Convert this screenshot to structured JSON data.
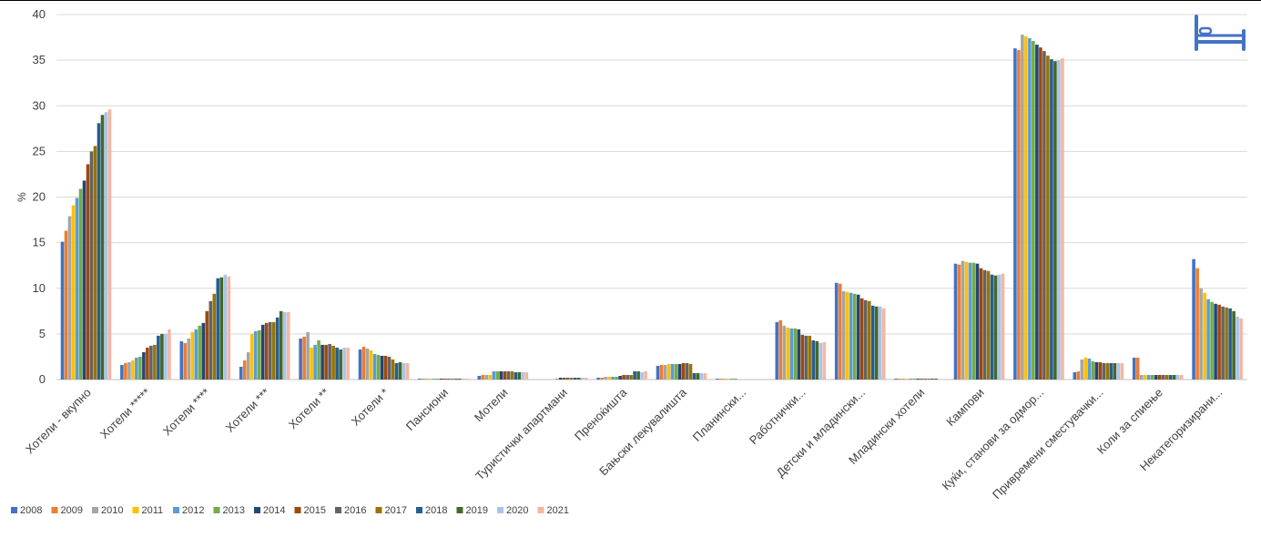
{
  "chart_data": {
    "type": "bar",
    "title": "",
    "xlabel": "",
    "ylabel": "%",
    "ylim": [
      0,
      40
    ],
    "yticks": [
      0,
      5,
      10,
      15,
      20,
      25,
      30,
      35,
      40
    ],
    "grid": true,
    "legend_position": "bottom-left",
    "categories": [
      "Хотели - вкупно",
      "Хотели *****",
      "Хотели ****",
      "Хотели ***",
      "Хотели **",
      "Хотели *",
      "Пансиони",
      "Мотели",
      "Туристички апартмани",
      "Преноќишта",
      "Бањски лекувалишта",
      "Планински...",
      "Работнички...",
      "Детски и младински...",
      "Младински хотели",
      "Кампови",
      "Куќи, станови за одмор...",
      "Привремени сместувачки...",
      "Коли за спиење",
      "Некатегоризирани..."
    ],
    "series": [
      {
        "name": "2008",
        "color": "#4472C4",
        "values": [
          15.1,
          1.6,
          4.2,
          1.4,
          4.5,
          3.3,
          0.1,
          0.4,
          0.0,
          0.2,
          1.5,
          0.1,
          6.3,
          10.6,
          0.1,
          12.7,
          36.3,
          0.8,
          2.4,
          13.2
        ]
      },
      {
        "name": "2009",
        "color": "#ED7D31",
        "values": [
          16.3,
          1.8,
          4.0,
          2.1,
          4.7,
          3.6,
          0.1,
          0.5,
          0.0,
          0.2,
          1.6,
          0.1,
          6.5,
          10.5,
          0.1,
          12.6,
          36.1,
          0.9,
          2.4,
          12.2
        ]
      },
      {
        "name": "2010",
        "color": "#A5A5A5",
        "values": [
          17.9,
          1.9,
          4.5,
          3.0,
          5.2,
          3.4,
          0.1,
          0.5,
          0.0,
          0.3,
          1.6,
          0.1,
          5.9,
          9.7,
          0.1,
          13.0,
          37.8,
          2.2,
          0.5,
          10.0
        ]
      },
      {
        "name": "2011",
        "color": "#FFC000",
        "values": [
          19.1,
          2.1,
          5.2,
          5.0,
          3.5,
          3.2,
          0.1,
          0.5,
          0.0,
          0.3,
          1.7,
          0.1,
          5.7,
          9.6,
          0.1,
          12.9,
          37.6,
          2.4,
          0.5,
          9.5
        ]
      },
      {
        "name": "2012",
        "color": "#5B9BD5",
        "values": [
          19.9,
          2.4,
          5.5,
          5.3,
          3.8,
          2.8,
          0.1,
          0.9,
          0.0,
          0.3,
          1.7,
          0.1,
          5.6,
          9.5,
          0.1,
          12.8,
          37.4,
          2.3,
          0.5,
          8.8
        ]
      },
      {
        "name": "2013",
        "color": "#70AD47",
        "values": [
          20.9,
          2.5,
          5.9,
          5.4,
          4.3,
          2.7,
          0.1,
          0.9,
          0.1,
          0.3,
          1.7,
          0.1,
          5.6,
          9.4,
          0.1,
          12.8,
          37.1,
          2.0,
          0.5,
          8.5
        ]
      },
      {
        "name": "2014",
        "color": "#264478",
        "values": [
          21.8,
          3.0,
          6.2,
          6.0,
          3.8,
          2.6,
          0.1,
          0.9,
          0.2,
          0.4,
          1.7,
          0.0,
          5.5,
          9.3,
          0.1,
          12.7,
          36.7,
          1.9,
          0.5,
          8.3
        ]
      },
      {
        "name": "2015",
        "color": "#9E480E",
        "values": [
          23.6,
          3.5,
          7.5,
          6.2,
          3.8,
          2.6,
          0.1,
          0.9,
          0.2,
          0.5,
          1.8,
          0.0,
          4.9,
          8.9,
          0.1,
          12.2,
          36.4,
          1.9,
          0.5,
          8.2
        ]
      },
      {
        "name": "2016",
        "color": "#636363",
        "values": [
          25.0,
          3.7,
          8.6,
          6.3,
          3.9,
          2.5,
          0.1,
          0.9,
          0.2,
          0.5,
          1.8,
          0.0,
          4.8,
          8.7,
          0.1,
          12.0,
          36.0,
          1.8,
          0.5,
          8.0
        ]
      },
      {
        "name": "2017",
        "color": "#997300",
        "values": [
          25.6,
          3.8,
          9.4,
          6.3,
          3.7,
          2.2,
          0.1,
          0.9,
          0.2,
          0.5,
          1.7,
          0.0,
          4.8,
          8.6,
          0.1,
          11.9,
          35.5,
          1.8,
          0.5,
          7.9
        ]
      },
      {
        "name": "2018",
        "color": "#255E91",
        "values": [
          28.1,
          4.8,
          11.1,
          6.8,
          3.5,
          1.8,
          0.1,
          0.8,
          0.2,
          0.9,
          0.7,
          0.0,
          4.3,
          8.1,
          0.1,
          11.5,
          35.1,
          1.8,
          0.5,
          7.8
        ]
      },
      {
        "name": "2019",
        "color": "#43682B",
        "values": [
          29.0,
          5.0,
          11.2,
          7.5,
          3.3,
          1.9,
          0.1,
          0.8,
          0.2,
          0.9,
          0.7,
          0.0,
          4.2,
          8.0,
          0.1,
          11.4,
          34.9,
          1.8,
          0.5,
          7.5
        ]
      },
      {
        "name": "2020",
        "color": "#A9C4EB",
        "values": [
          29.3,
          5.0,
          11.5,
          7.4,
          3.5,
          1.8,
          0.1,
          0.8,
          0.2,
          0.8,
          0.7,
          0.0,
          4.0,
          8.0,
          0.0,
          11.5,
          35.0,
          1.8,
          0.5,
          6.9
        ]
      },
      {
        "name": "2021",
        "color": "#F4B6A0",
        "values": [
          29.6,
          5.5,
          11.3,
          7.4,
          3.5,
          1.8,
          0.1,
          0.8,
          0.2,
          0.9,
          0.7,
          0.0,
          4.1,
          7.8,
          0.0,
          11.6,
          35.2,
          1.8,
          0.5,
          6.7
        ]
      }
    ]
  },
  "decor": {
    "bed_icon": "bed-icon",
    "bed_color": "#4472C4",
    "frame_line_color": "#000000",
    "grid_color": "#D9D9D9",
    "axis_color": "#BFBFBF",
    "text_color": "#404040"
  }
}
